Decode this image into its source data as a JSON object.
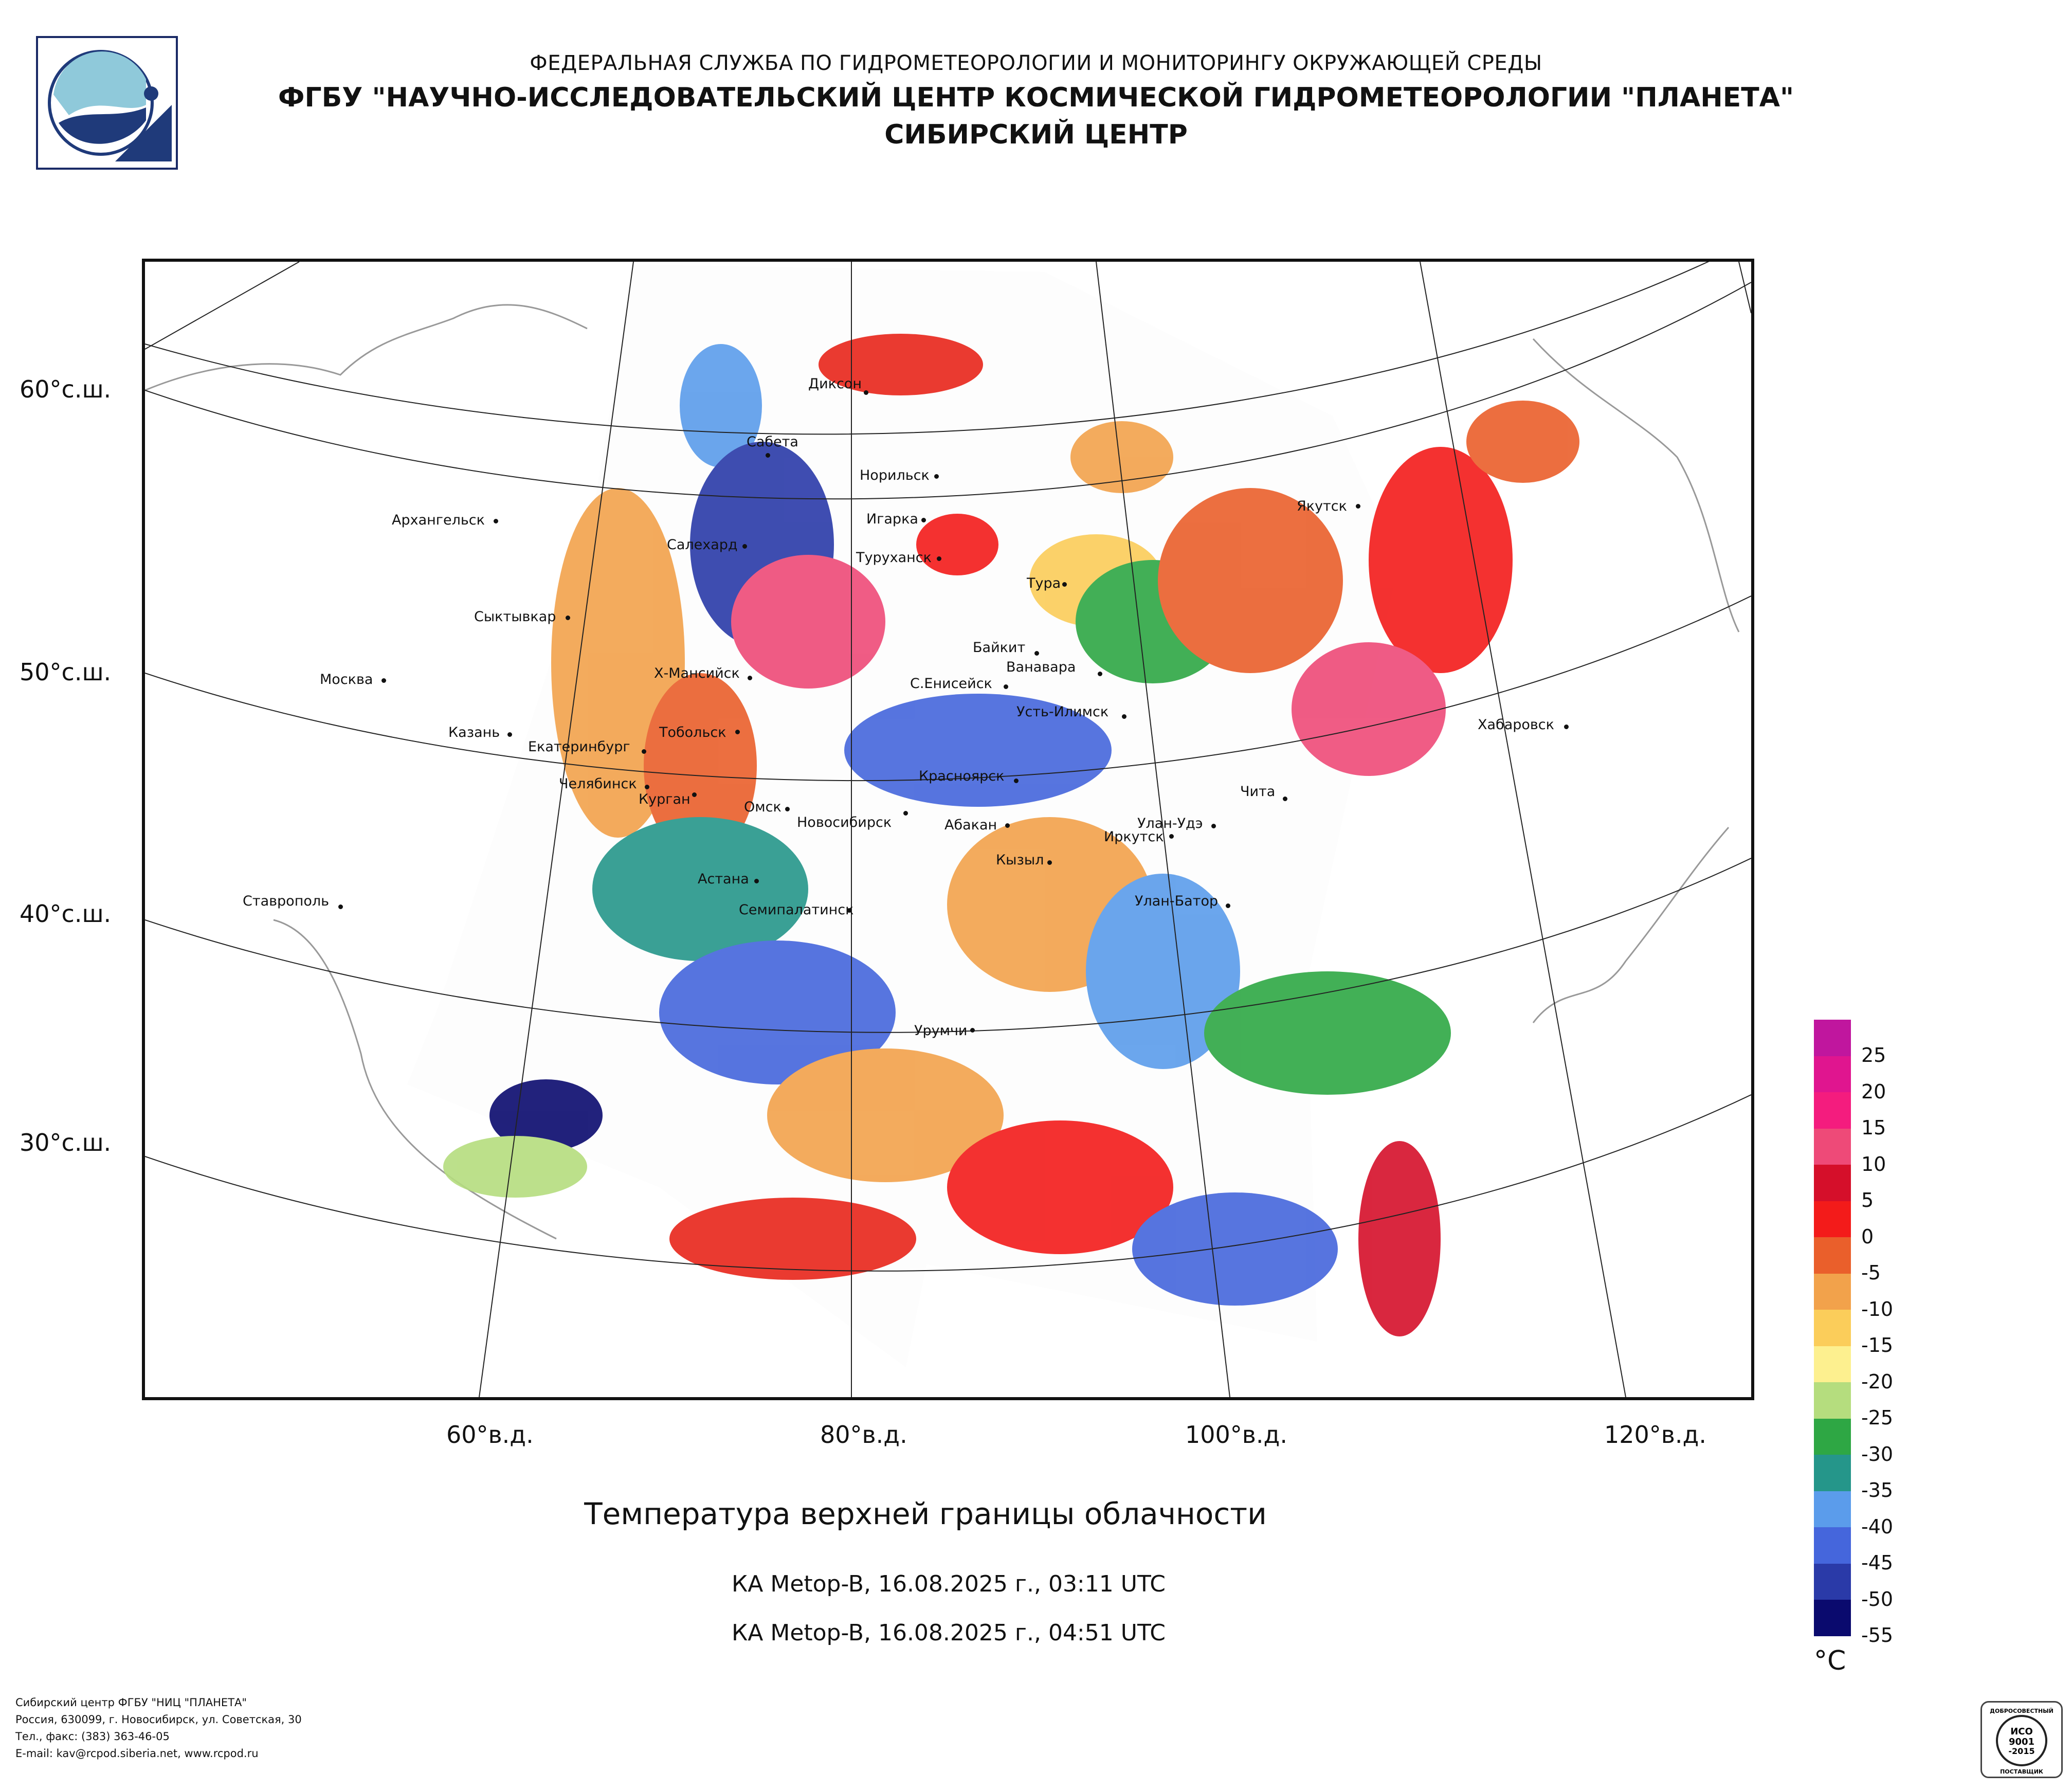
{
  "header": {
    "line1": "ФЕДЕРАЛЬНАЯ СЛУЖБА ПО ГИДРОМЕТЕОРОЛОГИИ И МОНИТОРИНГУ ОКРУЖАЮЩЕЙ СРЕДЫ",
    "line2": "ФГБУ \"НАУЧНО-ИССЛЕДОВАТЕЛЬСКИЙ ЦЕНТР КОСМИЧЕСКОЙ ГИДРОМЕТЕОРОЛОГИИ \"ПЛАНЕТА\"",
    "line3": "СИБИРСКИЙ ЦЕНТР"
  },
  "map": {
    "lat_labels": [
      "60°с.ш.",
      "50°с.ш.",
      "40°с.ш.",
      "30°с.ш."
    ],
    "lon_labels": [
      "60°в.д.",
      "80°в.д.",
      "100°в.д.",
      "120°в.д."
    ],
    "cities": [
      "Диксон",
      "Сабета",
      "Норильск",
      "Игарка",
      "Туруханск",
      "Якутск",
      "Архангельск",
      "Салехард",
      "Тура",
      "Сыктывкар",
      "Байкит",
      "Ванавара",
      "Москва",
      "Х-Мансийск",
      "С.Енисейск",
      "Усть-Илимск",
      "Казань",
      "Тобольск",
      "Екатеринбург",
      "Хабаровск",
      "Красноярск",
      "Челябинск",
      "Чита",
      "Курган",
      "Омск",
      "Новосибирск",
      "Абакан",
      "Улан-Удэ",
      "Иркутск",
      "Кызыл",
      "Астана",
      "Ставрополь",
      "Семипалатинск",
      "Улан-Батор",
      "Урумчи"
    ]
  },
  "title": "Температура верхней границы облачности",
  "passes": [
    "КА Metop-B, 16.08.2025 г., 03:11 UTC",
    "КА Metop-B, 16.08.2025 г., 04:51 UTC"
  ],
  "legend": {
    "ticks": [
      "25",
      "20",
      "15",
      "10",
      "5",
      "0",
      "-5",
      "-10",
      "-15",
      "-20",
      "-25",
      "-30",
      "-35",
      "-40",
      "-45",
      "-50",
      "-55"
    ],
    "unit": "°C",
    "colors": [
      "#c0169e",
      "#e0158f",
      "#f41c7e",
      "#ee4a78",
      "#d50f2a",
      "#f31b1a",
      "#ea5f2b",
      "#f2a24b",
      "#fbcd5a",
      "#fdf08f",
      "#b5dd7e",
      "#2ea744",
      "#25968a",
      "#5b9ceb",
      "#4566dc",
      "#2a3aa8",
      "#0a0a6e"
    ]
  },
  "footer": [
    "Сибирский центр ФГБУ \"НИЦ \"ПЛАНЕТА\"",
    "Россия, 630099, г. Новосибирск, ул. Советская, 30",
    "Тел., факс: (383) 363-46-05",
    "E-mail: kav@rcpod.siberia.net, www.rcpod.ru"
  ],
  "iso_badge": {
    "top": "ДОБРОСОВЕСТНЫЙ",
    "l1": "ИСО",
    "l2": "9001",
    "l3": "-2015",
    "bottom": "ПОСТАВЩИК"
  }
}
